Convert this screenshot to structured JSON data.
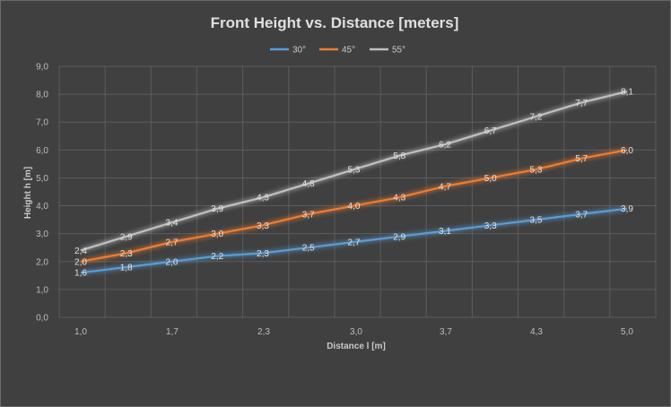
{
  "chart_data": {
    "type": "line",
    "title": "Front Height vs. Distance [meters]",
    "xlabel": "Distance l [m]",
    "ylabel": "Height h [m]",
    "ylim": [
      0,
      9
    ],
    "yticks": [
      "0,0",
      "1,0",
      "2,0",
      "3,0",
      "4,0",
      "5,0",
      "6,0",
      "7,0",
      "8,0",
      "9,0"
    ],
    "x_tick_labels": [
      "1,0",
      "1,7",
      "2,3",
      "3,0",
      "3,7",
      "4,3",
      "5,0"
    ],
    "grid": true,
    "legend_position": "top",
    "series": [
      {
        "name": "30°",
        "color": "#5b9bd5",
        "values": [
          1.6,
          1.8,
          2.0,
          2.2,
          2.3,
          2.5,
          2.7,
          2.9,
          3.1,
          3.3,
          3.5,
          3.7,
          3.9
        ],
        "labels": [
          "1,6",
          "1,8",
          "2,0",
          "2,2",
          "2,3",
          "2,5",
          "2,7",
          "2,9",
          "3,1",
          "3,3",
          "3,5",
          "3,7",
          "3,9"
        ]
      },
      {
        "name": "45°",
        "color": "#ed7d31",
        "values": [
          2.0,
          2.3,
          2.7,
          3.0,
          3.3,
          3.7,
          4.0,
          4.3,
          4.7,
          5.0,
          5.3,
          5.7,
          6.0
        ],
        "labels": [
          "2,0",
          "2,3",
          "2,7",
          "3,0",
          "3,3",
          "3,7",
          "4,0",
          "4,3",
          "4,7",
          "5,0",
          "5,3",
          "5,7",
          "6,0"
        ]
      },
      {
        "name": "55°",
        "color": "#bfbfbf",
        "values": [
          2.4,
          2.9,
          3.4,
          3.9,
          4.3,
          4.8,
          5.3,
          5.8,
          6.2,
          6.7,
          7.2,
          7.7,
          8.1
        ],
        "labels": [
          "2,4",
          "2,9",
          "3,4",
          "3,9",
          "4,3",
          "4,8",
          "5,3",
          "5,8",
          "6,2",
          "6,7",
          "7,2",
          "7,7",
          "8,1"
        ]
      }
    ]
  }
}
